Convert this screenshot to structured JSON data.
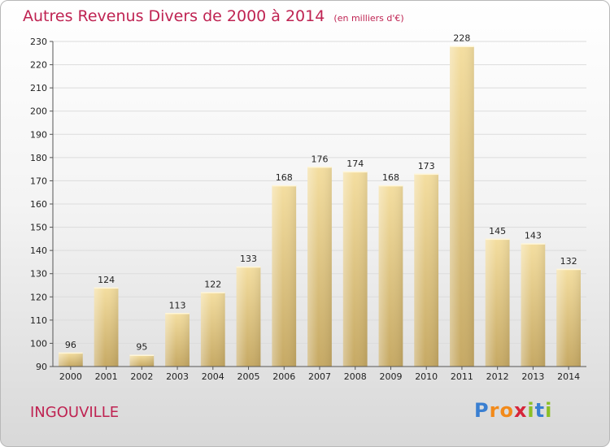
{
  "title": "Autres Revenus Divers de 2000 à 2014",
  "unit": "(en milliers d'€)",
  "commune": "INGOUVILLE",
  "logo": {
    "letters": [
      "P",
      "r",
      "o",
      "x",
      "i",
      "t",
      "i"
    ],
    "colors": [
      "#3a7fd1",
      "#f28a1a",
      "#f28a1a",
      "#d6253a",
      "#8cbf26",
      "#3a7fd1",
      "#8cbf26"
    ]
  },
  "colors": {
    "title": "#bf2352",
    "bar_light": "#f4dea0",
    "bar_dark": "#c6a964"
  },
  "chart_data": {
    "type": "bar",
    "categories": [
      "2000",
      "2001",
      "2002",
      "2003",
      "2004",
      "2005",
      "2006",
      "2007",
      "2008",
      "2009",
      "2010",
      "2011",
      "2012",
      "2013",
      "2014"
    ],
    "values": [
      96,
      124,
      95,
      113,
      122,
      133,
      168,
      176,
      174,
      168,
      173,
      228,
      145,
      143,
      132
    ],
    "ylim": [
      90,
      230
    ],
    "yticks": [
      90,
      100,
      110,
      120,
      130,
      140,
      150,
      160,
      170,
      180,
      190,
      200,
      210,
      220,
      230
    ],
    "grid": true
  }
}
